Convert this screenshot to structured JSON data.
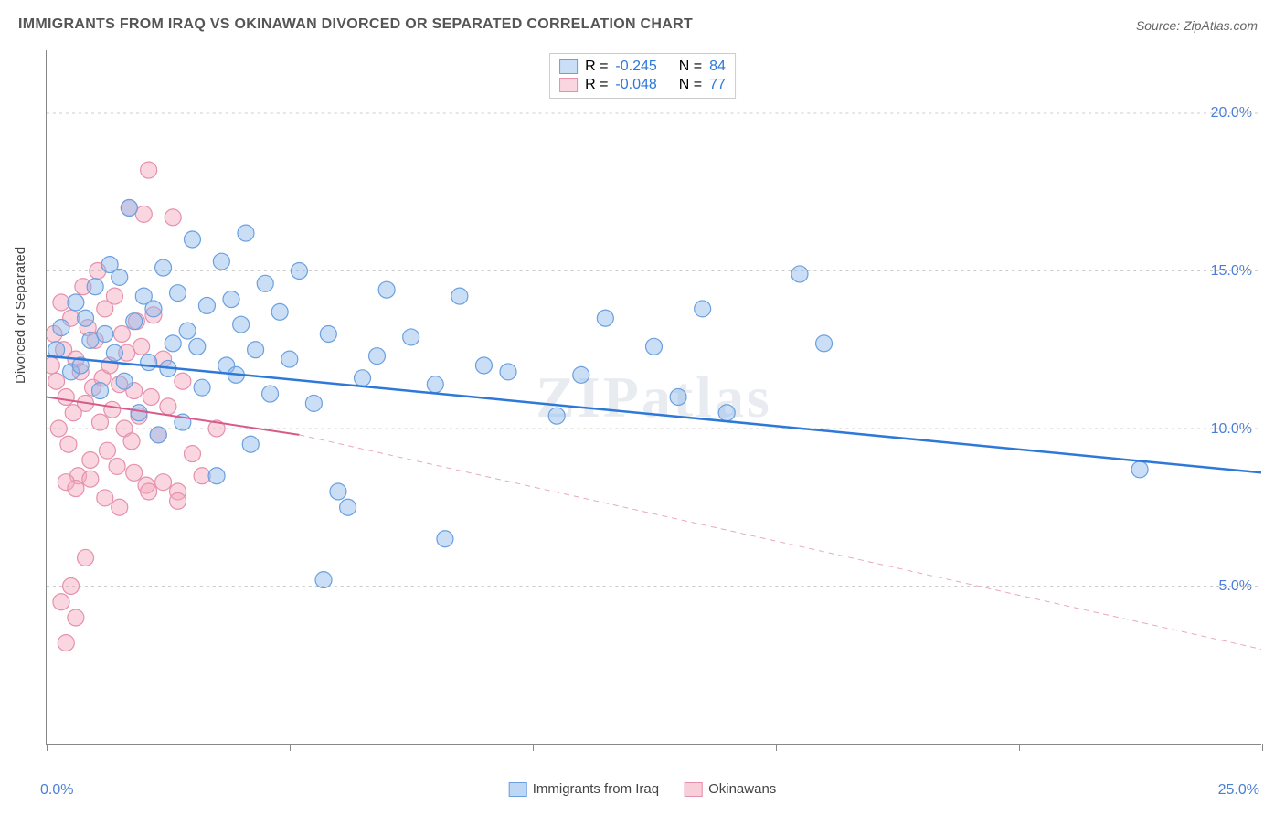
{
  "title": "IMMIGRANTS FROM IRAQ VS OKINAWAN DIVORCED OR SEPARATED CORRELATION CHART",
  "source": "Source: ZipAtlas.com",
  "watermark": "ZIPatlas",
  "yaxis_title": "Divorced or Separated",
  "chart": {
    "type": "scatter",
    "xlim": [
      0,
      25
    ],
    "ylim": [
      0,
      22
    ],
    "ytick_values": [
      5,
      10,
      15,
      20
    ],
    "ytick_labels": [
      "5.0%",
      "10.0%",
      "15.0%",
      "20.0%"
    ],
    "xtick_values": [
      0,
      5,
      10,
      15,
      20,
      25
    ],
    "xtick_labels": [
      "0.0%",
      "25.0%"
    ],
    "grid_color": "#cccccc",
    "axis_color": "#888888",
    "background_color": "#ffffff",
    "label_color": "#4a7fd8",
    "marker_radius": 9,
    "marker_stroke_width": 1.2,
    "series": [
      {
        "name": "Immigrants from Iraq",
        "fill": "rgba(137,182,235,0.45)",
        "stroke": "#6aa0df",
        "R": "-0.245",
        "N": "84",
        "trend": {
          "x1": 0,
          "y1": 12.3,
          "x2": 25,
          "y2": 8.6,
          "color": "#2d78d8",
          "width": 2.5
        },
        "points": [
          [
            0.2,
            12.5
          ],
          [
            0.3,
            13.2
          ],
          [
            0.5,
            11.8
          ],
          [
            0.6,
            14.0
          ],
          [
            0.7,
            12.0
          ],
          [
            0.8,
            13.5
          ],
          [
            0.9,
            12.8
          ],
          [
            1.0,
            14.5
          ],
          [
            1.1,
            11.2
          ],
          [
            1.2,
            13.0
          ],
          [
            1.3,
            15.2
          ],
          [
            1.4,
            12.4
          ],
          [
            1.5,
            14.8
          ],
          [
            1.6,
            11.5
          ],
          [
            1.7,
            17.0
          ],
          [
            1.8,
            13.4
          ],
          [
            1.9,
            10.5
          ],
          [
            2.0,
            14.2
          ],
          [
            2.1,
            12.1
          ],
          [
            2.2,
            13.8
          ],
          [
            2.3,
            9.8
          ],
          [
            2.4,
            15.1
          ],
          [
            2.5,
            11.9
          ],
          [
            2.6,
            12.7
          ],
          [
            2.7,
            14.3
          ],
          [
            2.8,
            10.2
          ],
          [
            2.9,
            13.1
          ],
          [
            3.0,
            16.0
          ],
          [
            3.1,
            12.6
          ],
          [
            3.2,
            11.3
          ],
          [
            3.3,
            13.9
          ],
          [
            3.5,
            8.5
          ],
          [
            3.6,
            15.3
          ],
          [
            3.7,
            12.0
          ],
          [
            3.8,
            14.1
          ],
          [
            3.9,
            11.7
          ],
          [
            4.0,
            13.3
          ],
          [
            4.1,
            16.2
          ],
          [
            4.2,
            9.5
          ],
          [
            4.3,
            12.5
          ],
          [
            4.5,
            14.6
          ],
          [
            4.6,
            11.1
          ],
          [
            4.8,
            13.7
          ],
          [
            5.0,
            12.2
          ],
          [
            5.2,
            15.0
          ],
          [
            5.5,
            10.8
          ],
          [
            5.7,
            5.2
          ],
          [
            5.8,
            13.0
          ],
          [
            6.0,
            8.0
          ],
          [
            6.2,
            7.5
          ],
          [
            6.5,
            11.6
          ],
          [
            6.8,
            12.3
          ],
          [
            7.0,
            14.4
          ],
          [
            7.5,
            12.9
          ],
          [
            8.0,
            11.4
          ],
          [
            8.2,
            6.5
          ],
          [
            8.5,
            14.2
          ],
          [
            9.0,
            12.0
          ],
          [
            9.5,
            11.8
          ],
          [
            10.5,
            10.4
          ],
          [
            11.0,
            11.7
          ],
          [
            11.5,
            13.5
          ],
          [
            12.5,
            12.6
          ],
          [
            13.0,
            11.0
          ],
          [
            13.5,
            13.8
          ],
          [
            14.0,
            10.5
          ],
          [
            15.5,
            14.9
          ],
          [
            16.0,
            12.7
          ],
          [
            22.5,
            8.7
          ]
        ]
      },
      {
        "name": "Okinawans",
        "fill": "rgba(243,166,186,0.45)",
        "stroke": "#e590ad",
        "R": "-0.048",
        "N": "77",
        "trend": {
          "x1": 0,
          "y1": 11.0,
          "x2": 5.2,
          "y2": 9.8,
          "color": "#d85a8a",
          "width": 2
        },
        "trend_ext": {
          "x1": 5.2,
          "y1": 9.8,
          "x2": 25,
          "y2": 3.0,
          "color": "#e8aab8",
          "width": 1,
          "dash": "6,5"
        },
        "points": [
          [
            0.1,
            12.0
          ],
          [
            0.15,
            13.0
          ],
          [
            0.2,
            11.5
          ],
          [
            0.25,
            10.0
          ],
          [
            0.3,
            14.0
          ],
          [
            0.35,
            12.5
          ],
          [
            0.4,
            11.0
          ],
          [
            0.45,
            9.5
          ],
          [
            0.5,
            13.5
          ],
          [
            0.55,
            10.5
          ],
          [
            0.6,
            12.2
          ],
          [
            0.65,
            8.5
          ],
          [
            0.7,
            11.8
          ],
          [
            0.75,
            14.5
          ],
          [
            0.8,
            10.8
          ],
          [
            0.85,
            13.2
          ],
          [
            0.9,
            9.0
          ],
          [
            0.95,
            11.3
          ],
          [
            1.0,
            12.8
          ],
          [
            1.05,
            15.0
          ],
          [
            1.1,
            10.2
          ],
          [
            1.15,
            11.6
          ],
          [
            1.2,
            13.8
          ],
          [
            1.25,
            9.3
          ],
          [
            1.3,
            12.0
          ],
          [
            1.35,
            10.6
          ],
          [
            1.4,
            14.2
          ],
          [
            1.45,
            8.8
          ],
          [
            1.5,
            11.4
          ],
          [
            1.55,
            13.0
          ],
          [
            1.6,
            10.0
          ],
          [
            1.65,
            12.4
          ],
          [
            1.7,
            17.0
          ],
          [
            1.75,
            9.6
          ],
          [
            1.8,
            11.2
          ],
          [
            1.85,
            13.4
          ],
          [
            1.9,
            10.4
          ],
          [
            1.95,
            12.6
          ],
          [
            2.0,
            16.8
          ],
          [
            2.05,
            8.2
          ],
          [
            2.1,
            18.2
          ],
          [
            2.15,
            11.0
          ],
          [
            2.2,
            13.6
          ],
          [
            2.3,
            9.8
          ],
          [
            2.4,
            12.2
          ],
          [
            2.5,
            10.7
          ],
          [
            2.6,
            16.7
          ],
          [
            2.7,
            8.0
          ],
          [
            2.8,
            11.5
          ],
          [
            0.3,
            4.5
          ],
          [
            0.4,
            3.2
          ],
          [
            0.5,
            5.0
          ],
          [
            0.6,
            4.0
          ],
          [
            0.8,
            5.9
          ],
          [
            0.4,
            8.3
          ],
          [
            0.6,
            8.1
          ],
          [
            0.9,
            8.4
          ],
          [
            1.2,
            7.8
          ],
          [
            1.5,
            7.5
          ],
          [
            1.8,
            8.6
          ],
          [
            2.1,
            8.0
          ],
          [
            2.4,
            8.3
          ],
          [
            2.7,
            7.7
          ],
          [
            3.0,
            9.2
          ],
          [
            3.2,
            8.5
          ],
          [
            3.5,
            10.0
          ]
        ]
      }
    ]
  },
  "legend_top": {
    "r_label": "R =",
    "n_label": "N ="
  },
  "legend_bottom": [
    {
      "label": "Immigrants from Iraq",
      "fill": "rgba(137,182,235,0.55)",
      "stroke": "#6aa0df"
    },
    {
      "label": "Okinawans",
      "fill": "rgba(243,166,186,0.55)",
      "stroke": "#e590ad"
    }
  ]
}
